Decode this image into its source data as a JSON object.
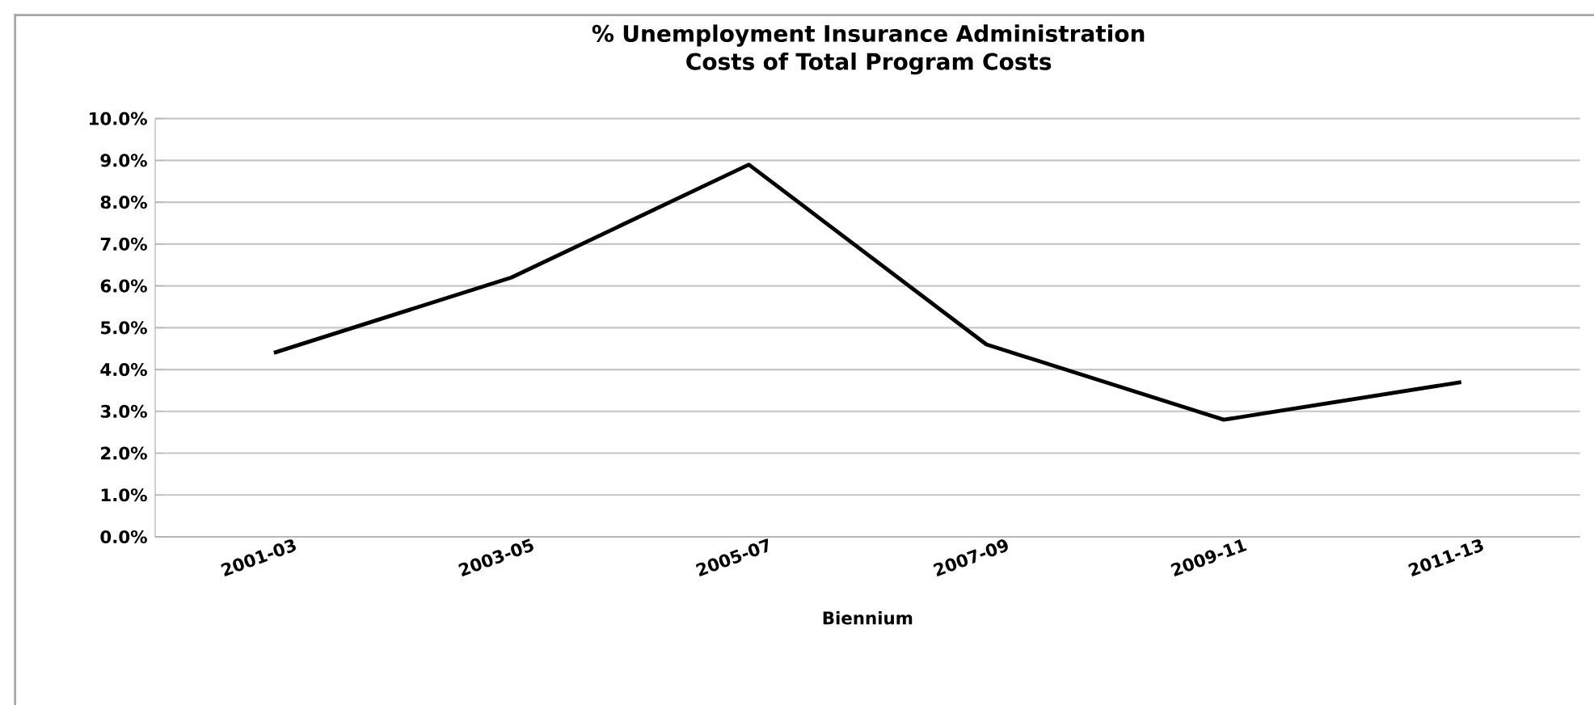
{
  "chart_data": {
    "type": "line",
    "title": "% Unemployment Insurance Administration Costs of Total Program Costs",
    "xlabel": "Biennium",
    "categories": [
      "2001-03",
      "2003-05",
      "2005-07",
      "2007-09",
      "2009-11",
      "2011-13"
    ],
    "values": [
      4.4,
      6.2,
      8.9,
      4.6,
      2.8,
      3.7
    ],
    "color": "#000000",
    "ylim": [
      0,
      10
    ],
    "yticks": [
      {
        "value": 0,
        "label": "0.0%"
      },
      {
        "value": 1,
        "label": "1.0%"
      },
      {
        "value": 2,
        "label": "2.0%"
      },
      {
        "value": 3,
        "label": "3.0%"
      },
      {
        "value": 4,
        "label": "4.0%"
      },
      {
        "value": 5,
        "label": "5.0%"
      },
      {
        "value": 6,
        "label": "6.0%"
      },
      {
        "value": 7,
        "label": "7.0%"
      },
      {
        "value": 8,
        "label": "8.0%"
      },
      {
        "value": 9,
        "label": "9.0%"
      },
      {
        "value": 10,
        "label": "10.0%"
      }
    ],
    "grid": "y",
    "marker": "none",
    "line_style": "solid"
  }
}
